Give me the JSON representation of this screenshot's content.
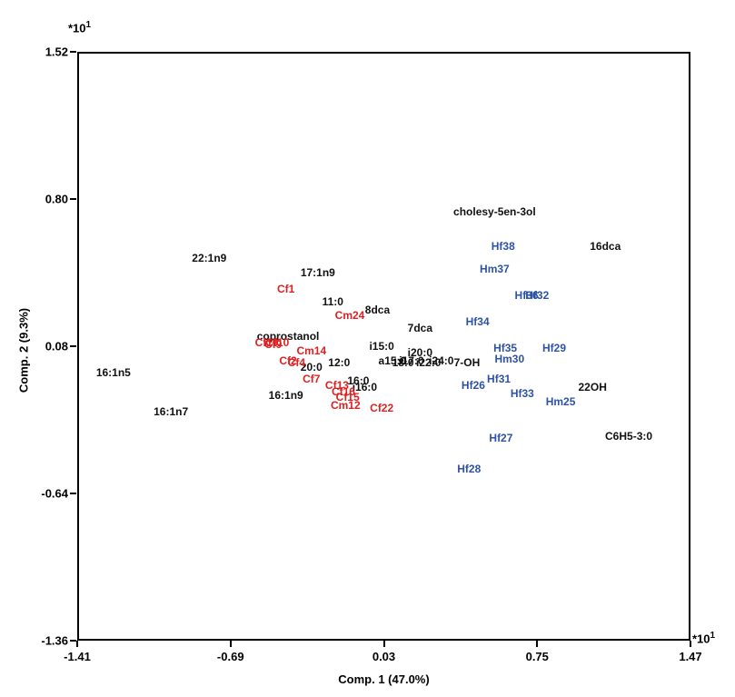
{
  "figure": {
    "x_axis": {
      "title": "Comp. 1 (47.0%)",
      "tick_labels": [
        "-1.41",
        "-0.69",
        "0.03",
        "0.75",
        "1.47"
      ],
      "ticks": [
        -1.41,
        -0.69,
        0.03,
        0.75,
        1.47
      ],
      "multiplier_base": "*10",
      "multiplier_exp": "1"
    },
    "y_axis": {
      "title": "Comp. 2 (9.3%)",
      "tick_labels": [
        "1.52",
        "0.80",
        "0.08",
        "-0.64",
        "-1.36"
      ],
      "ticks": [
        1.52,
        0.8,
        0.08,
        -0.64,
        -1.36
      ],
      "multiplier_base": "*10",
      "multiplier_exp": "1"
    },
    "colors": {
      "black": "#111111",
      "red": "#e02020",
      "blue": "#2d52a8",
      "grid": "#c4c4c4",
      "axis": "#000000"
    }
  },
  "chart_data": {
    "type": "scatter",
    "title": "",
    "xlabel": "Comp. 1 (47.0%)",
    "ylabel": "Comp. 2 (9.3%)",
    "xlim": [
      -1.41,
      1.47
    ],
    "ylim": [
      -1.36,
      1.52
    ],
    "x_multiplier": "*10^1",
    "y_multiplier": "*10^1",
    "grid": true,
    "legend": "none",
    "series": [
      {
        "name": "variables-black",
        "color": "black",
        "points": [
          {
            "label": "cholesy-5en-3ol",
            "x": 0.55,
            "y": 0.74
          },
          {
            "label": "16dca",
            "x": 1.07,
            "y": 0.57
          },
          {
            "label": "22:1n9",
            "x": -0.79,
            "y": 0.51
          },
          {
            "label": "17:1n9",
            "x": -0.28,
            "y": 0.44
          },
          {
            "label": "11:0",
            "x": -0.21,
            "y": 0.3
          },
          {
            "label": "8dca",
            "x": 0.0,
            "y": 0.26
          },
          {
            "label": "7dca",
            "x": 0.2,
            "y": 0.17
          },
          {
            "label": "coprostanol",
            "x": -0.42,
            "y": 0.13
          },
          {
            "label": "i15:0",
            "x": 0.02,
            "y": 0.08
          },
          {
            "label": "i20:0",
            "x": 0.2,
            "y": 0.05
          },
          {
            "label": "20:0",
            "x": -0.31,
            "y": -0.02
          },
          {
            "label": "12:0",
            "x": -0.18,
            "y": 0.0
          },
          {
            "label": "16:0",
            "x": -0.09,
            "y": -0.09
          },
          {
            "label": "i16:0",
            "x": -0.06,
            "y": -0.12
          },
          {
            "label": "a15:0",
            "x": 0.07,
            "y": 0.01
          },
          {
            "label": "18:0",
            "x": 0.12,
            "y": 0.0
          },
          {
            "label": "i17:0",
            "x": 0.16,
            "y": 0.01
          },
          {
            "label": "i22:0",
            "x": 0.24,
            "y": 0.0
          },
          {
            "label": "i24:0",
            "x": 0.3,
            "y": 0.01
          },
          {
            "label": "7-OH",
            "x": 0.42,
            "y": 0.0
          },
          {
            "label": "16:1n5",
            "x": -1.24,
            "y": -0.05
          },
          {
            "label": "16:1n7",
            "x": -0.97,
            "y": -0.24
          },
          {
            "label": "16:1n9",
            "x": -0.43,
            "y": -0.16
          },
          {
            "label": "22OH",
            "x": 1.01,
            "y": -0.12
          },
          {
            "label": "C6H5-3:0",
            "x": 1.18,
            "y": -0.36
          }
        ]
      },
      {
        "name": "C-samples-red",
        "color": "red",
        "points": [
          {
            "label": "Cf1",
            "x": -0.43,
            "y": 0.36
          },
          {
            "label": "Cm24",
            "x": -0.13,
            "y": 0.23
          },
          {
            "label": "Cf19",
            "x": -0.52,
            "y": 0.1
          },
          {
            "label": "Cf9",
            "x": -0.49,
            "y": 0.09
          },
          {
            "label": "Cf10",
            "x": -0.47,
            "y": 0.1
          },
          {
            "label": "Cm14",
            "x": -0.31,
            "y": 0.06
          },
          {
            "label": "Cf2",
            "x": -0.42,
            "y": 0.01
          },
          {
            "label": "Cf4",
            "x": -0.38,
            "y": 0.0
          },
          {
            "label": "Cf7",
            "x": -0.31,
            "y": -0.08
          },
          {
            "label": "Cf13",
            "x": -0.19,
            "y": -0.11
          },
          {
            "label": "Cf16",
            "x": -0.16,
            "y": -0.14
          },
          {
            "label": "Cf15",
            "x": -0.14,
            "y": -0.17
          },
          {
            "label": "Cm12",
            "x": -0.15,
            "y": -0.21
          },
          {
            "label": "Cf22",
            "x": 0.02,
            "y": -0.22
          }
        ]
      },
      {
        "name": "H-samples-blue",
        "color": "blue",
        "points": [
          {
            "label": "Hf38",
            "x": 0.59,
            "y": 0.57
          },
          {
            "label": "Hm37",
            "x": 0.55,
            "y": 0.46
          },
          {
            "label": "Hf36",
            "x": 0.7,
            "y": 0.33
          },
          {
            "label": "Hf32",
            "x": 0.75,
            "y": 0.33
          },
          {
            "label": "Hf34",
            "x": 0.47,
            "y": 0.2
          },
          {
            "label": "Hf35",
            "x": 0.6,
            "y": 0.07
          },
          {
            "label": "Hf29",
            "x": 0.83,
            "y": 0.07
          },
          {
            "label": "Hm30",
            "x": 0.62,
            "y": 0.02
          },
          {
            "label": "Hf26",
            "x": 0.45,
            "y": -0.11
          },
          {
            "label": "Hf31",
            "x": 0.57,
            "y": -0.08
          },
          {
            "label": "Hf33",
            "x": 0.68,
            "y": -0.15
          },
          {
            "label": "Hm25",
            "x": 0.86,
            "y": -0.19
          },
          {
            "label": "Hf27",
            "x": 0.58,
            "y": -0.37
          },
          {
            "label": "Hf28",
            "x": 0.43,
            "y": -0.52
          }
        ]
      }
    ]
  }
}
